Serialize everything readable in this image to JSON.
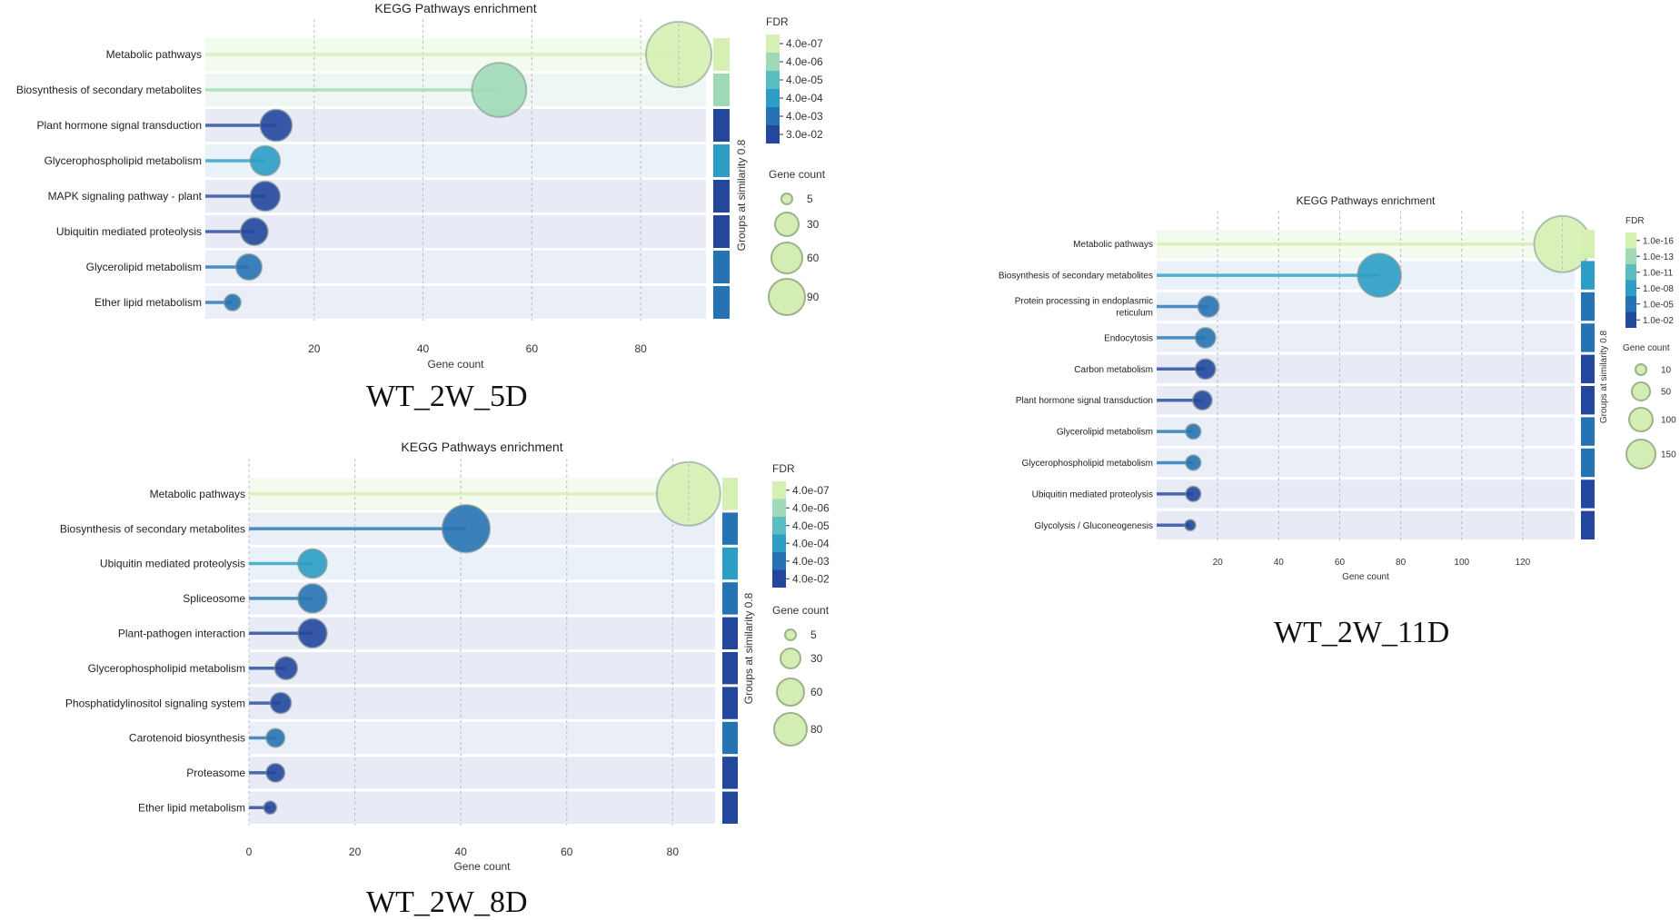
{
  "chart_data": [
    {
      "id": "wt5",
      "type": "lollipop",
      "title": "KEGG Pathways enrichment",
      "caption": "WT_2W_5D",
      "xlabel": "Gene count",
      "xlim": [
        0,
        92
      ],
      "xticks": [
        "20",
        "40",
        "60",
        "80"
      ],
      "group_label": "Groups at similarity 0.8",
      "fdr_title": "FDR",
      "fdr_ticks": [
        "4.0e-07",
        "4.0e-06",
        "4.0e-05",
        "4.0e-04",
        "4.0e-03",
        "3.0e-02"
      ],
      "size_title": "Gene count",
      "size_legend": [
        "5",
        "30",
        "60",
        "90"
      ],
      "pathways": [
        {
          "name": "Metabolic pathways",
          "value": 87,
          "fdr_level": 0,
          "group_level": 0
        },
        {
          "name": "Biosynthesis of secondary metabolites",
          "value": 54,
          "fdr_level": 1,
          "group_level": 1
        },
        {
          "name": "Plant hormone signal transduction",
          "value": 13,
          "fdr_level": 5,
          "group_level": 5
        },
        {
          "name": "Glycerophospholipid metabolism",
          "value": 11,
          "fdr_level": 3,
          "group_level": 3
        },
        {
          "name": "MAPK signaling pathway - plant",
          "value": 11,
          "fdr_level": 5,
          "group_level": 5
        },
        {
          "name": "Ubiquitin mediated proteolysis",
          "value": 9,
          "fdr_level": 5,
          "group_level": 5
        },
        {
          "name": "Glycerolipid metabolism",
          "value": 8,
          "fdr_level": 4,
          "group_level": 4
        },
        {
          "name": "Ether lipid metabolism",
          "value": 5,
          "fdr_level": 4,
          "group_level": 4
        }
      ]
    },
    {
      "id": "wt8",
      "type": "lollipop",
      "title": "KEGG Pathways enrichment",
      "caption": "WT_2W_8D",
      "xlabel": "Gene count",
      "xlim": [
        0,
        88
      ],
      "xticks": [
        "0",
        "20",
        "40",
        "60",
        "80"
      ],
      "group_label": "Groups at similarity 0.8",
      "fdr_title": "FDR",
      "fdr_ticks": [
        "4.0e-07",
        "4.0e-06",
        "4.0e-05",
        "4.0e-04",
        "4.0e-03",
        "4.0e-02"
      ],
      "size_title": "Gene count",
      "size_legend": [
        "5",
        "30",
        "60",
        "80"
      ],
      "pathways": [
        {
          "name": "Metabolic pathways",
          "value": 83,
          "fdr_level": 0,
          "group_level": 0
        },
        {
          "name": "Biosynthesis of secondary metabolites",
          "value": 41,
          "fdr_level": 4,
          "group_level": 4
        },
        {
          "name": "Ubiquitin mediated proteolysis",
          "value": 12,
          "fdr_level": 3,
          "group_level": 3
        },
        {
          "name": "Spliceosome",
          "value": 12,
          "fdr_level": 4,
          "group_level": 4
        },
        {
          "name": "Plant-pathogen interaction",
          "value": 12,
          "fdr_level": 5,
          "group_level": 5
        },
        {
          "name": "Glycerophospholipid metabolism",
          "value": 7,
          "fdr_level": 5,
          "group_level": 5
        },
        {
          "name": "Phosphatidylinositol signaling system",
          "value": 6,
          "fdr_level": 5,
          "group_level": 5
        },
        {
          "name": "Carotenoid biosynthesis",
          "value": 5,
          "fdr_level": 4,
          "group_level": 4
        },
        {
          "name": "Proteasome",
          "value": 5,
          "fdr_level": 5,
          "group_level": 5
        },
        {
          "name": "Ether lipid metabolism",
          "value": 4,
          "fdr_level": 5,
          "group_level": 5
        }
      ]
    },
    {
      "id": "wt11",
      "type": "lollipop",
      "title": "KEGG Pathways enrichment",
      "caption": "WT_2W_11D",
      "xlabel": "Gene count",
      "xlim": [
        0,
        137
      ],
      "xticks": [
        "20",
        "40",
        "60",
        "80",
        "100",
        "120"
      ],
      "group_label": "Groups at similarity 0.8",
      "fdr_title": "FDR",
      "fdr_ticks": [
        "1.0e-16",
        "1.0e-13",
        "1.0e-11",
        "1.0e-08",
        "1.0e-05",
        "1.0e-02"
      ],
      "size_title": "Gene count",
      "size_legend": [
        "10",
        "50",
        "100",
        "150"
      ],
      "pathways": [
        {
          "name": "Metabolic pathways",
          "value": 133,
          "fdr_level": 0,
          "group_level": 0
        },
        {
          "name": "Biosynthesis of secondary metabolites",
          "value": 73,
          "fdr_level": 3,
          "group_level": 3
        },
        {
          "name": "Protein processing in endoplasmic",
          "name2": "reticulum",
          "value": 17,
          "fdr_level": 4,
          "group_level": 4
        },
        {
          "name": "Endocytosis",
          "value": 16,
          "fdr_level": 4,
          "group_level": 4
        },
        {
          "name": "Carbon metabolism",
          "value": 16,
          "fdr_level": 5,
          "group_level": 5
        },
        {
          "name": "Plant hormone signal transduction",
          "value": 15,
          "fdr_level": 5,
          "group_level": 5
        },
        {
          "name": "Glycerolipid metabolism",
          "value": 12,
          "fdr_level": 4,
          "group_level": 4
        },
        {
          "name": "Glycerophospholipid metabolism",
          "value": 12,
          "fdr_level": 4,
          "group_level": 4
        },
        {
          "name": "Ubiquitin mediated proteolysis",
          "value": 12,
          "fdr_level": 5,
          "group_level": 5
        },
        {
          "name": "Glycolysis / Gluconeogenesis",
          "value": 11,
          "fdr_level": 5,
          "group_level": 5
        }
      ]
    }
  ],
  "colors": {
    "fdr_scale": [
      "#d6efb3",
      "#a0d9b7",
      "#5bbcc2",
      "#2c9dc5",
      "#2673b3",
      "#22479c"
    ],
    "row_scale": [
      "#f3faee",
      "#eef7f3",
      "#eaf6f7",
      "#e9f2f8",
      "#e9eef7",
      "#e8ebf6"
    ],
    "grid": "#b8bcc6"
  }
}
